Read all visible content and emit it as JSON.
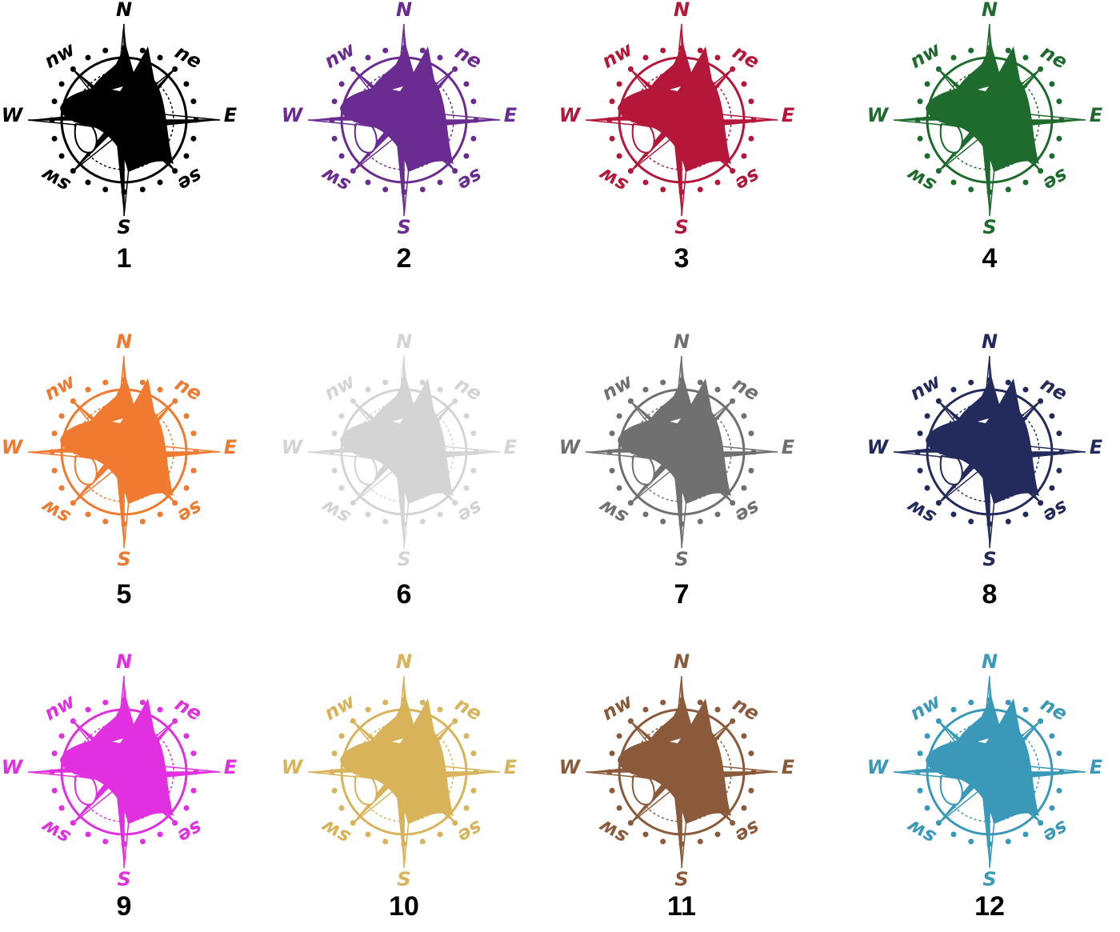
{
  "compass_labels": {
    "n": "N",
    "ne": "ne",
    "e": "E",
    "se": "se",
    "s": "S",
    "sw": "sw",
    "w": "W",
    "nw": "nw"
  },
  "items": [
    {
      "number": "1",
      "color": "#000000"
    },
    {
      "number": "2",
      "color": "#6a2c91"
    },
    {
      "number": "3",
      "color": "#b5173a"
    },
    {
      "number": "4",
      "color": "#1f6b2e"
    },
    {
      "number": "5",
      "color": "#f07a30"
    },
    {
      "number": "6",
      "color": "#d4d4d4"
    },
    {
      "number": "7",
      "color": "#707070"
    },
    {
      "number": "8",
      "color": "#232a5c"
    },
    {
      "number": "9",
      "color": "#e030e0"
    },
    {
      "number": "10",
      "color": "#d8b35a"
    },
    {
      "number": "11",
      "color": "#8a5a3a"
    },
    {
      "number": "12",
      "color": "#3a98b8"
    }
  ]
}
